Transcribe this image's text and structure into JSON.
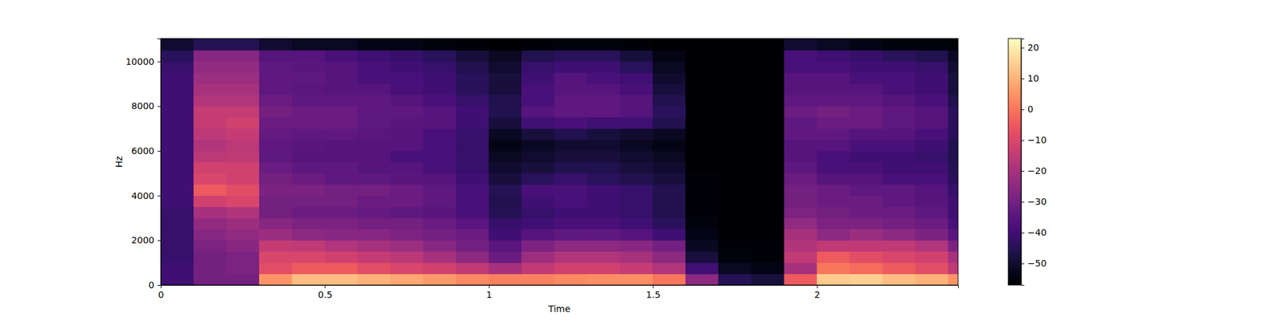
{
  "chart_data": {
    "type": "heatmap",
    "x_label": "Time",
    "y_label": "Hz",
    "xlim": [
      0,
      2.43
    ],
    "ylim": [
      0,
      11025
    ],
    "xticks": [
      0,
      0.5,
      1,
      1.5,
      2
    ],
    "yticks": [
      0,
      2000,
      4000,
      6000,
      8000,
      10000
    ],
    "x": [
      0,
      0.1,
      0.2,
      0.3,
      0.4,
      0.5,
      0.6,
      0.7,
      0.8,
      0.9,
      1.0,
      1.1,
      1.2,
      1.3,
      1.4,
      1.5,
      1.6,
      1.7,
      1.8,
      1.9,
      2.0,
      2.1,
      2.2,
      2.3,
      2.4,
      2.43
    ],
    "y": [
      0,
      500,
      1000,
      1500,
      2000,
      2500,
      3000,
      3500,
      4000,
      4500,
      5000,
      5500,
      6000,
      6500,
      7000,
      7500,
      8000,
      8500,
      9000,
      9500,
      10000,
      10500,
      11025
    ],
    "cells": [
      [
        -40,
        -30,
        -30,
        5,
        12,
        12,
        10,
        8,
        6,
        3,
        2,
        2,
        3,
        4,
        4,
        0,
        -25,
        -45,
        -48,
        -5,
        14,
        15,
        12,
        10,
        5
      ],
      [
        -40,
        -30,
        -28,
        -8,
        -5,
        -5,
        -8,
        -10,
        -12,
        -15,
        -20,
        -15,
        -12,
        -12,
        -14,
        -18,
        -40,
        -52,
        -54,
        -20,
        0,
        -2,
        -5,
        -8,
        -15
      ],
      [
        -42,
        -30,
        -28,
        -10,
        -10,
        -12,
        -14,
        -16,
        -20,
        -25,
        -32,
        -22,
        -18,
        -18,
        -20,
        -25,
        -48,
        -55,
        -56,
        -15,
        -5,
        -8,
        -10,
        -12,
        -20
      ],
      [
        -42,
        -28,
        -26,
        -14,
        -15,
        -18,
        -20,
        -22,
        -26,
        -30,
        -35,
        -28,
        -25,
        -25,
        -26,
        -30,
        -52,
        -56,
        -56,
        -18,
        -15,
        -15,
        -15,
        -18,
        -28
      ],
      [
        -42,
        -26,
        -24,
        -22,
        -25,
        -26,
        -26,
        -28,
        -30,
        -32,
        -40,
        -36,
        -34,
        -34,
        -36,
        -40,
        -54,
        -57,
        -57,
        -20,
        -25,
        -22,
        -25,
        -28,
        -35
      ],
      [
        -42,
        -24,
        -22,
        -26,
        -28,
        -28,
        -30,
        -30,
        -32,
        -35,
        -42,
        -40,
        -38,
        -38,
        -40,
        -44,
        -55,
        -57,
        -57,
        -24,
        -28,
        -28,
        -30,
        -32,
        -38
      ],
      [
        -42,
        -20,
        -18,
        -30,
        -32,
        -32,
        -33,
        -34,
        -35,
        -38,
        -45,
        -42,
        -40,
        -40,
        -42,
        -46,
        -56,
        -57,
        -57,
        -28,
        -30,
        -32,
        -32,
        -34,
        -40
      ],
      [
        -40,
        -12,
        -10,
        -30,
        -30,
        -30,
        -32,
        -32,
        -34,
        -38,
        -46,
        -40,
        -38,
        -40,
        -42,
        -46,
        -56,
        -57,
        -57,
        -30,
        -32,
        -32,
        -34,
        -36,
        -40
      ],
      [
        -40,
        -5,
        -8,
        -28,
        -28,
        -30,
        -30,
        -32,
        -34,
        -38,
        -45,
        -38,
        -38,
        -40,
        -42,
        -46,
        -56,
        -57,
        -57,
        -30,
        -32,
        -34,
        -34,
        -36,
        -42
      ],
      [
        -40,
        -10,
        -12,
        -30,
        -32,
        -34,
        -34,
        -35,
        -36,
        -40,
        -48,
        -44,
        -42,
        -44,
        -46,
        -48,
        -56,
        -57,
        -57,
        -32,
        -36,
        -36,
        -38,
        -38,
        -44
      ],
      [
        -40,
        -12,
        -12,
        -32,
        -34,
        -34,
        -36,
        -36,
        -38,
        -42,
        -50,
        -48,
        -46,
        -46,
        -48,
        -50,
        -57,
        -57,
        -57,
        -34,
        -38,
        -38,
        -40,
        -40,
        -45
      ],
      [
        -40,
        -16,
        -15,
        -34,
        -36,
        -36,
        -36,
        -38,
        -38,
        -42,
        -52,
        -50,
        -48,
        -48,
        -50,
        -52,
        -57,
        -57,
        -57,
        -36,
        -38,
        -40,
        -40,
        -42,
        -46
      ],
      [
        -40,
        -18,
        -16,
        -34,
        -35,
        -36,
        -36,
        -36,
        -38,
        -42,
        -54,
        -52,
        -50,
        -50,
        -52,
        -54,
        -57,
        -57,
        -57,
        -36,
        -36,
        -38,
        -38,
        -40,
        -46
      ],
      [
        -40,
        -16,
        -14,
        -33,
        -34,
        -34,
        -35,
        -36,
        -38,
        -42,
        -52,
        -48,
        -46,
        -48,
        -50,
        -52,
        -57,
        -57,
        -57,
        -34,
        -34,
        -36,
        -36,
        -38,
        -44
      ],
      [
        -40,
        -14,
        -12,
        -32,
        -32,
        -32,
        -34,
        -35,
        -36,
        -40,
        -48,
        -40,
        -38,
        -40,
        -40,
        -46,
        -57,
        -57,
        -57,
        -34,
        -32,
        -32,
        -34,
        -36,
        -44
      ],
      [
        -40,
        -14,
        -14,
        -30,
        -32,
        -32,
        -34,
        -34,
        -36,
        -40,
        -46,
        -36,
        -34,
        -34,
        -36,
        -44,
        -57,
        -57,
        -57,
        -32,
        -30,
        -32,
        -34,
        -36,
        -44
      ],
      [
        -40,
        -18,
        -18,
        -32,
        -34,
        -34,
        -34,
        -36,
        -38,
        -42,
        -46,
        -38,
        -34,
        -34,
        -36,
        -46,
        -57,
        -57,
        -57,
        -34,
        -34,
        -34,
        -36,
        -38,
        -46
      ],
      [
        -40,
        -20,
        -20,
        -34,
        -35,
        -36,
        -36,
        -38,
        -40,
        -44,
        -48,
        -38,
        -36,
        -36,
        -38,
        -48,
        -57,
        -57,
        -57,
        -36,
        -36,
        -36,
        -38,
        -40,
        -48
      ],
      [
        -40,
        -22,
        -22,
        -34,
        -34,
        -36,
        -38,
        -38,
        -40,
        -44,
        -48,
        -40,
        -36,
        -38,
        -40,
        -50,
        -57,
        -57,
        -57,
        -36,
        -36,
        -38,
        -38,
        -40,
        -48
      ],
      [
        -42,
        -24,
        -24,
        -34,
        -35,
        -36,
        -38,
        -40,
        -42,
        -46,
        -50,
        -42,
        -40,
        -40,
        -44,
        -52,
        -57,
        -57,
        -57,
        -38,
        -38,
        -40,
        -40,
        -42,
        -50
      ],
      [
        -44,
        -26,
        -26,
        -36,
        -36,
        -38,
        -40,
        -42,
        -44,
        -48,
        -52,
        -46,
        -44,
        -44,
        -48,
        -54,
        -57,
        -57,
        -57,
        -38,
        -40,
        -42,
        -44,
        -46,
        -52
      ],
      [
        -50,
        -45,
        -45,
        -50,
        -52,
        -52,
        -54,
        -54,
        -55,
        -56,
        -57,
        -56,
        -55,
        -55,
        -56,
        -57,
        -57,
        -57,
        -57,
        -50,
        -52,
        -54,
        -55,
        -55,
        -56
      ]
    ],
    "colorbar_range": [
      -57,
      23
    ],
    "colorbar_ticks": [
      {
        "value": -50,
        "label": "−50"
      },
      {
        "value": -40,
        "label": "−40"
      },
      {
        "value": -30,
        "label": "−30"
      },
      {
        "value": -20,
        "label": "−20"
      },
      {
        "value": -10,
        "label": "−10"
      },
      0,
      10,
      20
    ]
  }
}
